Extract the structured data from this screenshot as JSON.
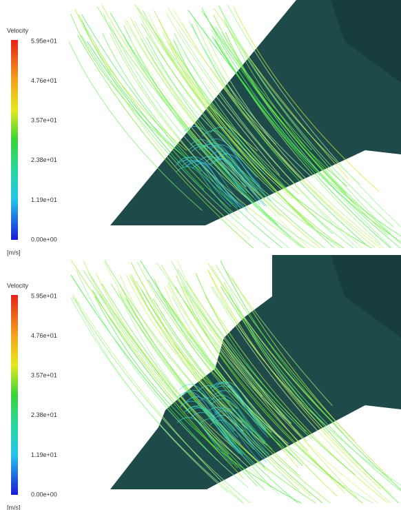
{
  "panels": [
    {
      "legend": {
        "title": "Velocity",
        "ticks": [
          "5.95e+01",
          "4.76e+01",
          "3.57e+01",
          "2.38e+01",
          "1.19e+01",
          "0.00e+00"
        ],
        "unit": "[m/s]"
      }
    },
    {
      "legend": {
        "title": "Velocity",
        "ticks": [
          "5.95e+01",
          "4.76e+01",
          "3.57e+01",
          "2.38e+01",
          "1.19e+01",
          "0.00e+00"
        ],
        "unit": "[m/s]"
      }
    }
  ]
}
